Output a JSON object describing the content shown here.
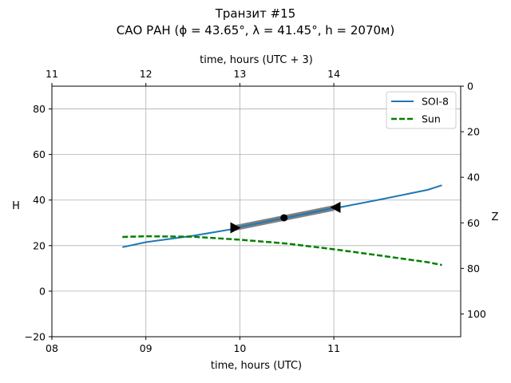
{
  "chart_data": {
    "type": "line",
    "title_line1": "Транзит #15",
    "title_line2": "САО РАН (ϕ = 43.65°, λ = 41.45°, h = 2070м)",
    "xlabel_bottom": "time, hours (UTC)",
    "xlabel_top": "time, hours (UTC + 3)",
    "ylabel_left": "H",
    "ylabel_right": "Z",
    "xlim": [
      8.0,
      12.35
    ],
    "ylim": [
      -20,
      90
    ],
    "x_ticks_bottom": [
      {
        "v": 8,
        "label": "08"
      },
      {
        "v": 9,
        "label": "09"
      },
      {
        "v": 10,
        "label": "10"
      },
      {
        "v": 11,
        "label": "11"
      }
    ],
    "x_ticks_top": [
      {
        "v": 8,
        "label": "11"
      },
      {
        "v": 9,
        "label": "12"
      },
      {
        "v": 10,
        "label": "13"
      },
      {
        "v": 11,
        "label": "14"
      }
    ],
    "y_ticks_left": [
      -20,
      0,
      20,
      40,
      60,
      80
    ],
    "y_ticks_right": [
      0,
      20,
      40,
      60,
      80,
      100
    ],
    "grid": true,
    "legend_position": "top-right",
    "series": [
      {
        "name": "SOI-8",
        "color": "#1f77b4",
        "style": "solid",
        "x": [
          8.75,
          9.0,
          9.5,
          10.0,
          10.5,
          11.0,
          11.5,
          12.0,
          12.15
        ],
        "y": [
          19.3,
          21.5,
          24.3,
          27.8,
          32.3,
          36.3,
          40.3,
          44.5,
          46.5
        ]
      },
      {
        "name": "Sun",
        "color": "#008000",
        "style": "dashed",
        "x": [
          8.75,
          9.0,
          9.5,
          10.0,
          10.5,
          11.0,
          11.5,
          12.0,
          12.15
        ],
        "y": [
          23.8,
          24.1,
          23.9,
          22.6,
          20.9,
          18.4,
          15.6,
          12.7,
          11.5
        ]
      }
    ],
    "transit_segment": {
      "x": [
        9.95,
        11.0
      ],
      "y": [
        27.8,
        36.5
      ],
      "color": "#808080"
    },
    "markers": [
      {
        "type": "triangle-right",
        "x": 9.95,
        "y": 27.8,
        "color": "#000000"
      },
      {
        "type": "circle",
        "x": 10.47,
        "y": 32.2,
        "color": "#000000"
      },
      {
        "type": "triangle-left",
        "x": 11.02,
        "y": 36.8,
        "color": "#000000"
      }
    ]
  }
}
